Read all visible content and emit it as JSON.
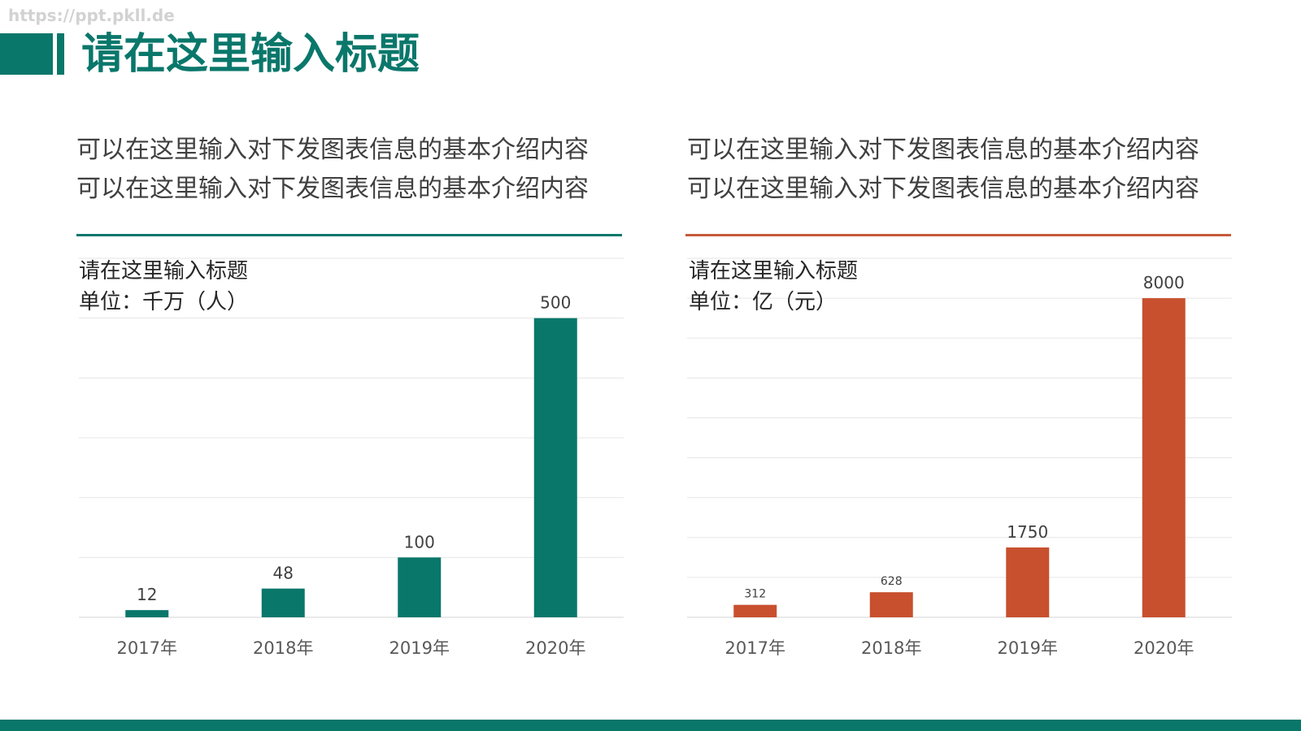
{
  "watermark": "https://ppt.pkll.de",
  "slide": {
    "title": "请在这里输入标题"
  },
  "colors": {
    "teal": "#0A776B",
    "orange": "#C8502E",
    "orange_line": "#C65A3A"
  },
  "panels": [
    {
      "description": [
        "可以在这里输入对下发图表信息的基本介绍内容",
        "可以在这里输入对下发图表信息的基本介绍内容"
      ]
    },
    {
      "description": [
        "可以在这里输入对下发图表信息的基本介绍内容",
        "可以在这里输入对下发图表信息的基本介绍内容"
      ]
    }
  ],
  "chart_data": [
    {
      "type": "bar",
      "title": "请在这里输入标题",
      "subtitle": "单位：千万（人）",
      "categories": [
        "2017年",
        "2018年",
        "2019年",
        "2020年"
      ],
      "values": [
        12,
        48,
        100,
        500
      ],
      "ylim": [
        0,
        600
      ],
      "ytick_step": 100,
      "yticks_shown": false,
      "grid": true,
      "data_labels": true,
      "color": "#0A776B"
    },
    {
      "type": "bar",
      "title": "请在这里输入标题",
      "subtitle": "单位：亿（元）",
      "categories": [
        "2017年",
        "2018年",
        "2019年",
        "2020年"
      ],
      "values": [
        312,
        628,
        1750,
        8000
      ],
      "ylim": [
        0,
        9000
      ],
      "ytick_step": 1000,
      "yticks_shown": false,
      "grid": true,
      "data_labels": true,
      "color": "#C8502E"
    }
  ]
}
